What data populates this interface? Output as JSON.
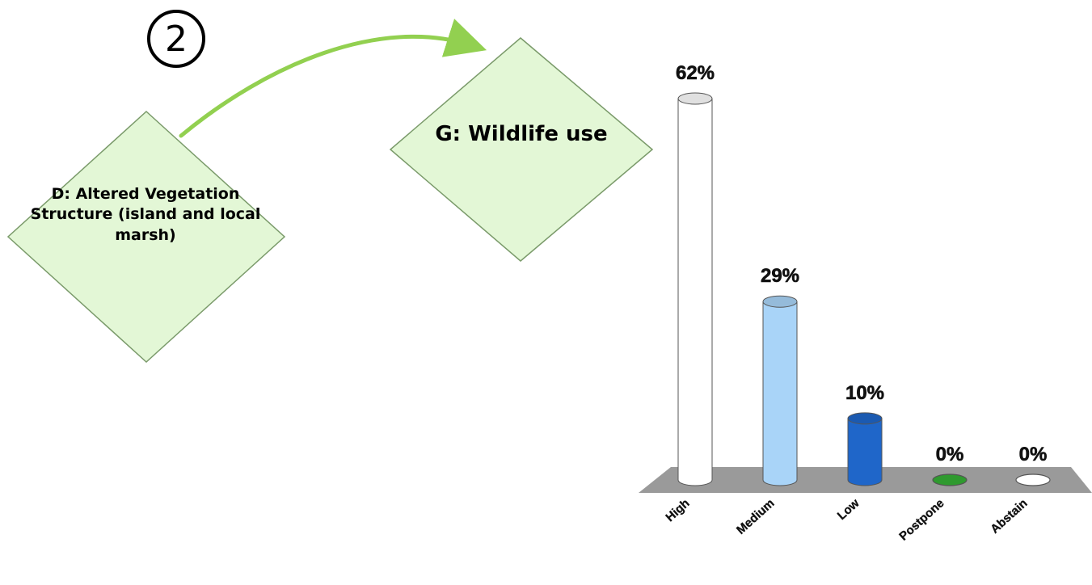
{
  "diagram": {
    "step_number": "2",
    "source_node": "D: Altered Vegetation Structure (island and local marsh)",
    "target_node": "G: Wildlife use",
    "node_fill": "#e3f7d6",
    "node_border": "#7a9a6a",
    "arrow_color": "#92d050"
  },
  "chart_data": {
    "type": "bar",
    "categories": [
      "High",
      "Medium",
      "Low",
      "Postpone",
      "Abstain"
    ],
    "values": [
      62,
      29,
      10,
      0,
      0
    ],
    "value_labels": [
      "62%",
      "29%",
      "10%",
      "0%",
      "0%"
    ],
    "bar_colors": [
      "#ffffff",
      "#a9d4f8",
      "#1f66c9",
      "#2f9a2f",
      "#ffffff"
    ],
    "floor_color": "#9a9a9a",
    "ylim": [
      0,
      62
    ],
    "grid": false,
    "legend": "none"
  }
}
